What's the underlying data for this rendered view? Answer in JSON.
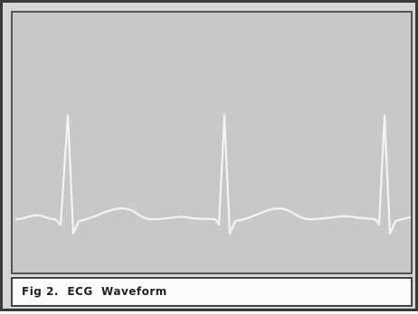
{
  "figure": {
    "caption": "Fig 2.  ECG  Waveform"
  }
}
